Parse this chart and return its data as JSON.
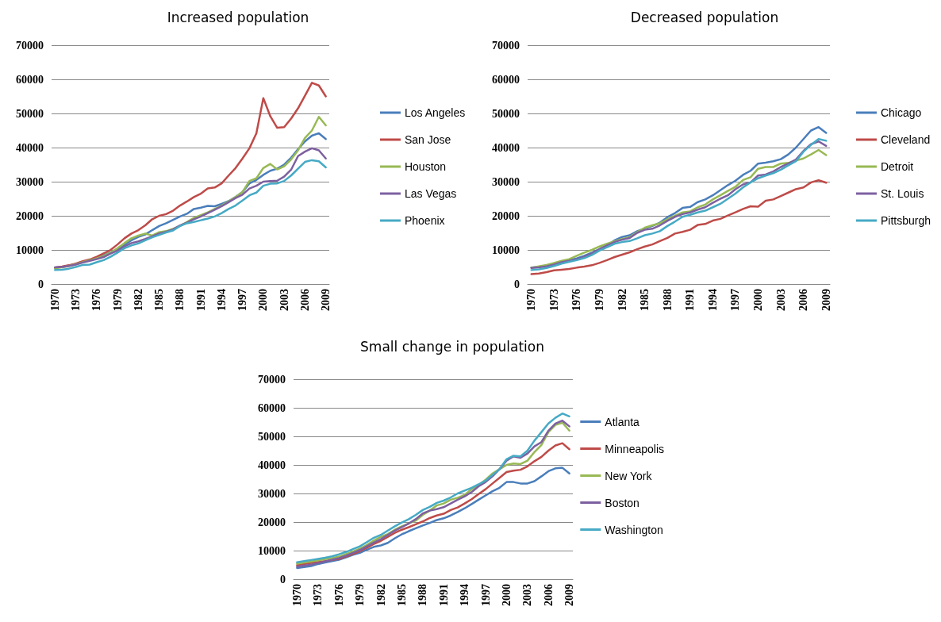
{
  "chart_data": [
    {
      "type": "line",
      "title": "Increased population",
      "categories": [
        "1970",
        null,
        null,
        "1973",
        null,
        null,
        "1976",
        null,
        null,
        "1979",
        null,
        null,
        "1982",
        null,
        null,
        "1985",
        null,
        null,
        "1988",
        null,
        null,
        "1991",
        null,
        null,
        "1994",
        null,
        null,
        "1997",
        null,
        null,
        "2000",
        null,
        null,
        "2003",
        null,
        null,
        "2006",
        null,
        null,
        "2009"
      ],
      "ylim": [
        0,
        70000
      ],
      "yticks": [
        0,
        10000,
        20000,
        30000,
        40000,
        50000,
        60000,
        70000
      ],
      "grid": "y",
      "legend": "right",
      "marker": "none",
      "series": [
        {
          "name": "Los Angeles",
          "color": "#4a7ebb",
          "values": [
            4800,
            5000,
            5400,
            5900,
            6500,
            7000,
            7600,
            8400,
            9300,
            10300,
            11500,
            12800,
            13800,
            14500,
            15800,
            17000,
            17800,
            18800,
            19800,
            20600,
            22000,
            22400,
            22900,
            22800,
            23500,
            24300,
            25500,
            27000,
            29500,
            30500,
            32000,
            33200,
            33800,
            35000,
            37000,
            39500,
            41800,
            43500,
            44200,
            42500
          ]
        },
        {
          "name": "San Jose",
          "color": "#be4b48",
          "values": [
            4800,
            5100,
            5500,
            6000,
            6700,
            7200,
            8000,
            9000,
            10000,
            11600,
            13400,
            14800,
            15800,
            17200,
            19000,
            20000,
            20500,
            21500,
            23000,
            24200,
            25500,
            26500,
            28000,
            28300,
            29500,
            31800,
            34000,
            36800,
            39800,
            44200,
            54500,
            49200,
            45800,
            46000,
            48500,
            51500,
            55200,
            59000,
            58200,
            55000
          ]
        },
        {
          "name": "Houston",
          "color": "#98b954",
          "values": [
            4600,
            4900,
            5300,
            5800,
            6400,
            7000,
            7500,
            8200,
            9200,
            10500,
            12000,
            13400,
            14200,
            14800,
            14200,
            15200,
            15500,
            16200,
            17000,
            18200,
            19400,
            20200,
            21000,
            22000,
            23000,
            24200,
            25500,
            27000,
            30200,
            31000,
            34000,
            35200,
            33600,
            34500,
            36500,
            39200,
            42800,
            45000,
            49000,
            46500
          ]
        },
        {
          "name": "Las Vegas",
          "color": "#7d60a0",
          "values": [
            4900,
            5000,
            5300,
            5700,
            6300,
            6800,
            7300,
            7900,
            8900,
            9800,
            11000,
            12000,
            12500,
            13200,
            14000,
            14800,
            15300,
            16000,
            17200,
            18000,
            19000,
            19800,
            20800,
            21800,
            22800,
            24000,
            25200,
            26200,
            28000,
            28800,
            30000,
            30200,
            30300,
            31500,
            33500,
            37500,
            38800,
            39800,
            39200,
            36800
          ]
        },
        {
          "name": "Phoenix",
          "color": "#46aac5",
          "values": [
            4100,
            4200,
            4500,
            5000,
            5600,
            5700,
            6400,
            7000,
            8000,
            9200,
            10500,
            11300,
            11900,
            12800,
            13700,
            14400,
            15100,
            15700,
            17000,
            17800,
            18200,
            18700,
            19200,
            19800,
            20800,
            22000,
            23000,
            24500,
            26000,
            26800,
            28800,
            29400,
            29500,
            30200,
            31800,
            33800,
            35800,
            36300,
            36000,
            34200
          ]
        }
      ]
    },
    {
      "type": "line",
      "title": "Decreased population",
      "categories": [
        "1970",
        null,
        null,
        "1973",
        null,
        null,
        "1976",
        null,
        null,
        "1979",
        null,
        null,
        "1982",
        null,
        null,
        "1985",
        null,
        null,
        "1988",
        null,
        null,
        "1991",
        null,
        null,
        "1994",
        null,
        null,
        "1997",
        null,
        null,
        "2000",
        null,
        null,
        "2003",
        null,
        null,
        "2006",
        null,
        null,
        "2009"
      ],
      "ylim": [
        0,
        70000
      ],
      "yticks": [
        0,
        10000,
        20000,
        30000,
        40000,
        50000,
        60000,
        70000
      ],
      "grid": "y",
      "legend": "right",
      "marker": "none",
      "series": [
        {
          "name": "Chicago",
          "color": "#4a7ebb",
          "values": [
            4800,
            5000,
            5400,
            5900,
            6600,
            7000,
            7500,
            8300,
            9200,
            10200,
            11300,
            12800,
            13800,
            14300,
            15500,
            16300,
            17000,
            18000,
            19600,
            20800,
            22300,
            22600,
            24000,
            24800,
            26000,
            27500,
            29000,
            30300,
            32000,
            33200,
            35300,
            35600,
            36000,
            36600,
            38000,
            40000,
            42500,
            45000,
            46000,
            44300
          ]
        },
        {
          "name": "Cleveland",
          "color": "#be4b48",
          "values": [
            2900,
            3100,
            3500,
            4000,
            4200,
            4400,
            4800,
            5100,
            5500,
            6200,
            7000,
            7900,
            8600,
            9300,
            10200,
            11000,
            11600,
            12600,
            13500,
            14800,
            15300,
            15900,
            17300,
            17600,
            18600,
            19100,
            20100,
            21000,
            22000,
            22800,
            22700,
            24400,
            24800,
            25800,
            26800,
            27800,
            28300,
            29800,
            30400,
            29700
          ]
        },
        {
          "name": "Detroit",
          "color": "#98b954",
          "values": [
            4800,
            5200,
            5600,
            6200,
            6800,
            7300,
            8300,
            9200,
            10000,
            11000,
            11800,
            12500,
            13200,
            13700,
            15200,
            16500,
            17200,
            17800,
            19000,
            20000,
            21000,
            21300,
            22500,
            23300,
            24800,
            26000,
            27300,
            28500,
            30500,
            31300,
            33800,
            34300,
            34300,
            35300,
            35500,
            36200,
            36800,
            38000,
            39300,
            37800
          ]
        },
        {
          "name": "St. Louis",
          "color": "#7d60a0",
          "values": [
            4700,
            4900,
            5200,
            5700,
            6400,
            6800,
            7200,
            8000,
            9000,
            10200,
            11300,
            12300,
            13000,
            13500,
            15000,
            15900,
            16200,
            17200,
            18500,
            19700,
            20500,
            21000,
            21800,
            22500,
            23800,
            25000,
            26000,
            27800,
            29200,
            29800,
            31800,
            32100,
            33000,
            34300,
            35300,
            36500,
            39000,
            41000,
            41800,
            40500
          ]
        },
        {
          "name": "Pittsburgh",
          "color": "#46aac5",
          "values": [
            4100,
            4300,
            4700,
            5300,
            6000,
            6500,
            7000,
            7600,
            8500,
            9800,
            10800,
            11800,
            12300,
            12600,
            13400,
            14300,
            14800,
            15500,
            17000,
            18300,
            19700,
            20300,
            21000,
            21500,
            22500,
            23500,
            25000,
            26500,
            28300,
            29800,
            31000,
            31800,
            32500,
            33500,
            34800,
            36000,
            38800,
            40800,
            42500,
            42000
          ]
        }
      ]
    },
    {
      "type": "line",
      "title": "Small change in population",
      "categories": [
        "1970",
        null,
        null,
        "1973",
        null,
        null,
        "1976",
        null,
        null,
        "1979",
        null,
        null,
        "1982",
        null,
        null,
        "1985",
        null,
        null,
        "1988",
        null,
        null,
        "1991",
        null,
        null,
        "1994",
        null,
        null,
        "1997",
        null,
        null,
        "2000",
        null,
        null,
        "2003",
        null,
        null,
        "2006",
        null,
        null,
        "2009"
      ],
      "ylim": [
        0,
        70000
      ],
      "yticks": [
        0,
        10000,
        20000,
        30000,
        40000,
        50000,
        60000,
        70000
      ],
      "grid": "y",
      "legend": "right",
      "marker": "none",
      "series": [
        {
          "name": "Atlanta",
          "color": "#4a7ebb",
          "values": [
            3900,
            4200,
            4600,
            5300,
            5800,
            6300,
            6800,
            7600,
            8500,
            9200,
            10300,
            11300,
            11800,
            12700,
            14300,
            15700,
            16800,
            17800,
            18800,
            19700,
            20700,
            21300,
            22300,
            23500,
            24800,
            26300,
            27800,
            29300,
            30800,
            32000,
            34000,
            34000,
            33500,
            33500,
            34300,
            36000,
            37800,
            38800,
            39000,
            37000
          ]
        },
        {
          "name": "Minneapolis",
          "color": "#be4b48",
          "values": [
            4900,
            5300,
            5700,
            6000,
            6300,
            6700,
            7100,
            7900,
            8800,
            9800,
            11000,
            12300,
            13400,
            14800,
            16200,
            17300,
            18200,
            19200,
            20200,
            21400,
            22300,
            22900,
            24200,
            25100,
            26500,
            28000,
            29800,
            31500,
            33500,
            35500,
            37500,
            38000,
            38300,
            39500,
            41300,
            42800,
            45000,
            46800,
            47600,
            45500
          ]
        },
        {
          "name": "New York",
          "color": "#98b954",
          "values": [
            5400,
            5800,
            6200,
            6600,
            7000,
            7400,
            7900,
            8800,
            9700,
            10700,
            12000,
            13500,
            14800,
            15800,
            17300,
            18500,
            19500,
            20500,
            22500,
            24000,
            25800,
            26500,
            27800,
            28500,
            29500,
            31500,
            33000,
            34800,
            37000,
            38500,
            40000,
            40500,
            40300,
            41500,
            44500,
            47000,
            51500,
            54000,
            54800,
            52000
          ]
        },
        {
          "name": "Boston",
          "color": "#7d60a0",
          "values": [
            4400,
            4700,
            5100,
            5600,
            6200,
            6800,
            7400,
            8200,
            9200,
            10200,
            11500,
            12800,
            14000,
            15500,
            17000,
            18200,
            19500,
            21000,
            23000,
            24000,
            24500,
            25200,
            26500,
            27800,
            29000,
            30500,
            32500,
            34000,
            36000,
            38500,
            41500,
            43000,
            42500,
            44000,
            46500,
            48000,
            52000,
            54500,
            55500,
            53500
          ]
        },
        {
          "name": "Washington",
          "color": "#46aac5",
          "values": [
            5900,
            6300,
            6700,
            7100,
            7500,
            8000,
            8700,
            9500,
            10500,
            11500,
            13000,
            14500,
            15500,
            17000,
            18500,
            19800,
            21000,
            22500,
            24200,
            25300,
            26700,
            27500,
            28600,
            30000,
            31000,
            32000,
            33200,
            34500,
            36500,
            38500,
            42000,
            43200,
            43000,
            45000,
            48500,
            51500,
            54500,
            56500,
            58000,
            57000
          ]
        }
      ]
    }
  ]
}
